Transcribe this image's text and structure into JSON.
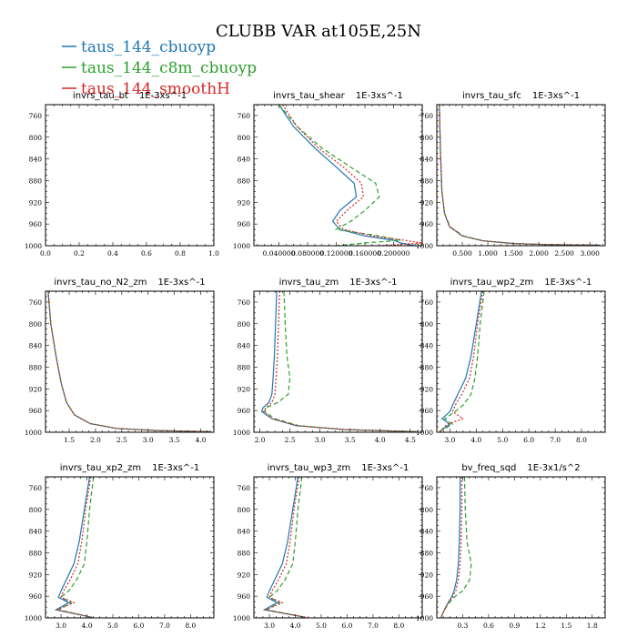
{
  "title": "CLUBB VAR at105E,25N",
  "legend": [
    {
      "label": "taus_144_cbuoyp",
      "color": "#1f77b4",
      "dash": "solid"
    },
    {
      "label": "taus_144_c8m_cbuoyp",
      "color": "#2ca02c",
      "dash": "dash"
    },
    {
      "label": "taus_144_smoothH",
      "color": "#d62728",
      "dash": "dot"
    }
  ],
  "chart_data": [
    {
      "type": "line",
      "title": "invrs_tau_bt",
      "units": "1E-3xs^-1",
      "xlim": [
        0,
        1
      ],
      "ylim": [
        740,
        1000
      ],
      "xticks": [
        0.0,
        0.2,
        0.4,
        0.6,
        0.8,
        1.0
      ],
      "xticklabels": [
        "0.0",
        "0.2",
        "0.4",
        "0.6",
        "0.8",
        "1.0"
      ],
      "yticks": [
        760,
        800,
        840,
        880,
        920,
        960,
        1000
      ],
      "series": []
    },
    {
      "type": "line",
      "title": "invrs_tau_shear",
      "units": "1E-3xs^-1",
      "xlim": [
        0.005,
        0.24
      ],
      "ylim": [
        740,
        1000
      ],
      "xticks": [
        0.04,
        0.08,
        0.12,
        0.16,
        0.2
      ],
      "xticklabels": [
        "0.040000",
        "0.080000",
        "0.120000",
        "0.160000",
        "0.200000"
      ],
      "yticks": [
        760,
        800,
        840,
        880,
        920,
        960,
        1000
      ],
      "series": [
        {
          "name": "taus_144_cbuoyp",
          "x": [
            0.04,
            0.06,
            0.09,
            0.12,
            0.145,
            0.148,
            0.125,
            0.115,
            0.125,
            0.16,
            0.2,
            0.21,
            0.23
          ],
          "y": [
            740,
            780,
            820,
            855,
            885,
            910,
            935,
            955,
            970,
            982,
            990,
            995,
            1000
          ]
        },
        {
          "name": "taus_144_c8m_cbuoyp",
          "x": [
            0.04,
            0.065,
            0.1,
            0.14,
            0.175,
            0.18,
            0.16,
            0.14,
            0.12,
            0.18,
            0.21,
            0.16,
            0.12
          ],
          "y": [
            740,
            780,
            820,
            855,
            885,
            910,
            935,
            955,
            970,
            982,
            990,
            995,
            1000
          ]
        },
        {
          "name": "taus_144_smoothH",
          "x": [
            0.045,
            0.065,
            0.095,
            0.13,
            0.155,
            0.158,
            0.135,
            0.12,
            0.13,
            0.17,
            0.215,
            0.24,
            0.18
          ],
          "y": [
            740,
            780,
            820,
            855,
            885,
            910,
            935,
            955,
            970,
            982,
            990,
            995,
            1000
          ]
        }
      ]
    },
    {
      "type": "line",
      "title": "invrs_tau_sfc",
      "units": "1E-3xs^-1",
      "xlim": [
        0,
        3.3
      ],
      "ylim": [
        740,
        1000
      ],
      "xticks": [
        0.5,
        1.0,
        1.5,
        2.0,
        2.5,
        3.0
      ],
      "xticklabels": [
        "0.500",
        "1.000",
        "1.500",
        "2.000",
        "2.500",
        "3.000"
      ],
      "yticks": [
        760,
        800,
        840,
        880,
        920,
        960,
        1000
      ],
      "series": [
        {
          "name": "taus_144_cbuoyp",
          "x": [
            0.05,
            0.07,
            0.1,
            0.15,
            0.25,
            0.5,
            0.9,
            1.5,
            2.2,
            3.2
          ],
          "y": [
            740,
            820,
            900,
            940,
            965,
            982,
            991,
            996,
            998,
            999
          ]
        },
        {
          "name": "taus_144_c8m_cbuoyp",
          "x": [
            0.05,
            0.07,
            0.1,
            0.15,
            0.26,
            0.52,
            0.92,
            1.5,
            2.2,
            3.2
          ],
          "y": [
            740,
            820,
            900,
            940,
            965,
            982,
            991,
            996,
            998,
            999
          ]
        },
        {
          "name": "taus_144_smoothH",
          "x": [
            0.05,
            0.07,
            0.1,
            0.15,
            0.25,
            0.5,
            0.9,
            1.5,
            2.2,
            3.2
          ],
          "y": [
            740,
            820,
            900,
            940,
            965,
            982,
            991,
            996,
            998,
            999
          ]
        }
      ]
    },
    {
      "type": "line",
      "title": "invrs_tau_no_N2_zm",
      "units": "1E-3xs^-1",
      "xlim": [
        1.05,
        4.25
      ],
      "ylim": [
        740,
        1000
      ],
      "xticks": [
        1.5,
        2.0,
        2.5,
        3.0,
        3.5,
        4.0
      ],
      "xticklabels": [
        "1.5",
        "2.0",
        "2.5",
        "3.0",
        "3.5",
        "4.0"
      ],
      "yticks": [
        760,
        800,
        840,
        880,
        920,
        960,
        1000
      ],
      "series": [
        {
          "name": "taus_144_cbuoyp",
          "x": [
            1.1,
            1.15,
            1.25,
            1.35,
            1.45,
            1.6,
            1.9,
            2.4,
            3.2,
            4.2
          ],
          "y": [
            740,
            800,
            860,
            910,
            945,
            968,
            984,
            993,
            997,
            999
          ]
        },
        {
          "name": "taus_144_c8m_cbuoyp",
          "x": [
            1.1,
            1.15,
            1.25,
            1.35,
            1.45,
            1.6,
            1.9,
            2.4,
            3.2,
            4.2
          ],
          "y": [
            740,
            800,
            860,
            910,
            945,
            968,
            984,
            993,
            997,
            999
          ]
        },
        {
          "name": "taus_144_smoothH",
          "x": [
            1.1,
            1.15,
            1.25,
            1.35,
            1.45,
            1.6,
            1.9,
            2.4,
            3.2,
            4.2
          ],
          "y": [
            740,
            800,
            860,
            910,
            945,
            968,
            984,
            993,
            997,
            999
          ]
        }
      ]
    },
    {
      "type": "line",
      "title": "invrs_tau_zm",
      "units": "1E-3xs^-1",
      "xlim": [
        1.9,
        4.7
      ],
      "ylim": [
        740,
        1000
      ],
      "xticks": [
        2.0,
        2.5,
        3.0,
        3.5,
        4.0,
        4.5
      ],
      "xticklabels": [
        "2.0",
        "2.5",
        "3.0",
        "3.5",
        "4.0",
        "4.5"
      ],
      "yticks": [
        760,
        800,
        840,
        880,
        920,
        960,
        1000
      ],
      "series": [
        {
          "name": "taus_144_cbuoyp",
          "x": [
            2.28,
            2.26,
            2.24,
            2.22,
            2.2,
            2.15,
            2.05,
            2.03,
            2.2,
            2.6,
            3.4,
            4.6
          ],
          "y": [
            740,
            800,
            860,
            900,
            930,
            945,
            955,
            962,
            975,
            988,
            995,
            999
          ]
        },
        {
          "name": "taus_144_c8m_cbuoyp",
          "x": [
            2.4,
            2.42,
            2.45,
            2.5,
            2.47,
            2.3,
            2.1,
            2.08,
            2.25,
            2.65,
            3.4,
            4.6
          ],
          "y": [
            740,
            800,
            860,
            900,
            930,
            945,
            955,
            962,
            975,
            988,
            995,
            999
          ]
        },
        {
          "name": "taus_144_smoothH",
          "x": [
            2.33,
            2.31,
            2.29,
            2.27,
            2.25,
            2.2,
            2.1,
            2.06,
            2.2,
            2.62,
            3.4,
            4.6
          ],
          "y": [
            740,
            800,
            860,
            900,
            930,
            945,
            955,
            962,
            975,
            988,
            995,
            999
          ]
        }
      ]
    },
    {
      "type": "line",
      "title": "invrs_tau_wp2_zm",
      "units": "1E-3xs^-1",
      "xlim": [
        2.5,
        8.9
      ],
      "ylim": [
        740,
        1000
      ],
      "xticks": [
        3.0,
        4.0,
        5.0,
        6.0,
        7.0,
        8.0
      ],
      "xticklabels": [
        "3.0",
        "4.0",
        "5.0",
        "6.0",
        "7.0",
        "8.0"
      ],
      "yticks": [
        760,
        800,
        840,
        880,
        920,
        960,
        1000
      ],
      "series": [
        {
          "name": "taus_144_cbuoyp",
          "x": [
            4.2,
            4.0,
            3.8,
            3.6,
            3.3,
            3.1,
            3.0,
            2.7,
            3.0,
            2.6
          ],
          "y": [
            740,
            800,
            860,
            900,
            930,
            950,
            962,
            975,
            985,
            999
          ]
        },
        {
          "name": "taus_144_c8m_cbuoyp",
          "x": [
            4.3,
            4.15,
            4.05,
            3.95,
            3.8,
            3.5,
            3.2,
            2.8,
            3.1,
            2.6
          ],
          "y": [
            740,
            800,
            860,
            900,
            930,
            950,
            962,
            975,
            985,
            999
          ]
        },
        {
          "name": "taus_144_smoothH",
          "x": [
            4.25,
            4.05,
            3.9,
            3.75,
            3.45,
            3.2,
            3.1,
            3.5,
            2.9,
            2.6
          ],
          "y": [
            740,
            800,
            860,
            900,
            930,
            950,
            962,
            975,
            985,
            999
          ]
        }
      ]
    },
    {
      "type": "line",
      "title": "invrs_tau_xp2_zm",
      "units": "1E-3xs^-1",
      "xlim": [
        2.4,
        8.9
      ],
      "ylim": [
        740,
        1000
      ],
      "xticks": [
        3.0,
        4.0,
        5.0,
        6.0,
        7.0,
        8.0
      ],
      "xticklabels": [
        "3.0",
        "4.0",
        "5.0",
        "6.0",
        "7.0",
        "8.0"
      ],
      "yticks": [
        760,
        800,
        840,
        880,
        920,
        960,
        1000
      ],
      "series": [
        {
          "name": "taus_144_cbuoyp",
          "x": [
            4.1,
            3.9,
            3.7,
            3.5,
            3.2,
            3.0,
            2.9,
            3.3,
            2.8,
            4.2
          ],
          "y": [
            740,
            800,
            860,
            900,
            930,
            950,
            962,
            972,
            985,
            999
          ]
        },
        {
          "name": "taus_144_c8m_cbuoyp",
          "x": [
            4.25,
            4.1,
            4.0,
            3.9,
            3.6,
            3.3,
            3.0,
            3.4,
            2.9,
            4.2
          ],
          "y": [
            740,
            800,
            860,
            900,
            930,
            950,
            962,
            972,
            985,
            999
          ]
        },
        {
          "name": "taus_144_smoothH",
          "x": [
            4.15,
            3.95,
            3.8,
            3.65,
            3.35,
            3.1,
            3.0,
            3.5,
            2.85,
            4.2
          ],
          "y": [
            740,
            800,
            860,
            900,
            930,
            950,
            962,
            972,
            985,
            999
          ]
        }
      ]
    },
    {
      "type": "line",
      "title": "invrs_tau_wp3_zm",
      "units": "1E-3xs^-1",
      "xlim": [
        2.4,
        8.9
      ],
      "ylim": [
        740,
        1000
      ],
      "xticks": [
        3.0,
        4.0,
        5.0,
        6.0,
        7.0,
        8.0
      ],
      "xticklabels": [
        "3.0",
        "4.0",
        "5.0",
        "6.0",
        "7.0",
        "8.0"
      ],
      "yticks": [
        760,
        800,
        840,
        880,
        920,
        960,
        1000
      ],
      "series": [
        {
          "name": "taus_144_cbuoyp",
          "x": [
            4.1,
            3.9,
            3.7,
            3.5,
            3.2,
            3.0,
            2.9,
            3.3,
            2.8,
            4.4
          ],
          "y": [
            740,
            800,
            860,
            900,
            930,
            950,
            962,
            972,
            985,
            999
          ]
        },
        {
          "name": "taus_144_c8m_cbuoyp",
          "x": [
            4.25,
            4.1,
            4.0,
            3.9,
            3.6,
            3.3,
            3.0,
            3.4,
            2.9,
            4.4
          ],
          "y": [
            740,
            800,
            860,
            900,
            930,
            950,
            962,
            972,
            985,
            999
          ]
        },
        {
          "name": "taus_144_smoothH",
          "x": [
            4.15,
            3.95,
            3.8,
            3.65,
            3.35,
            3.1,
            3.0,
            3.5,
            2.85,
            4.4
          ],
          "y": [
            740,
            800,
            860,
            900,
            930,
            950,
            962,
            972,
            985,
            999
          ]
        }
      ]
    },
    {
      "type": "line",
      "title": "bv_freq_sqd",
      "units": "1E-3x1/s^2",
      "xlim": [
        0.0,
        1.95
      ],
      "ylim": [
        740,
        1000
      ],
      "xticks": [
        0.3,
        0.6,
        0.9,
        1.2,
        1.5,
        1.8
      ],
      "xticklabels": [
        "0.3",
        "0.6",
        "0.9",
        "1.2",
        "1.5",
        "1.8"
      ],
      "yticks": [
        760,
        800,
        840,
        880,
        920,
        960,
        1000
      ],
      "series": [
        {
          "name": "taus_144_cbuoyp",
          "x": [
            0.27,
            0.27,
            0.26,
            0.25,
            0.23,
            0.2,
            0.17,
            0.12,
            0.08,
            0.05
          ],
          "y": [
            740,
            800,
            860,
            900,
            930,
            950,
            962,
            975,
            988,
            999
          ]
        },
        {
          "name": "taus_144_c8m_cbuoyp",
          "x": [
            0.32,
            0.33,
            0.35,
            0.4,
            0.38,
            0.3,
            0.2,
            0.13,
            0.08,
            0.05
          ],
          "y": [
            740,
            800,
            860,
            900,
            930,
            950,
            962,
            975,
            988,
            999
          ]
        },
        {
          "name": "taus_144_smoothH",
          "x": [
            0.29,
            0.29,
            0.28,
            0.27,
            0.25,
            0.22,
            0.18,
            0.12,
            0.08,
            0.05
          ],
          "y": [
            740,
            800,
            860,
            900,
            930,
            950,
            962,
            975,
            988,
            999
          ]
        }
      ]
    }
  ]
}
